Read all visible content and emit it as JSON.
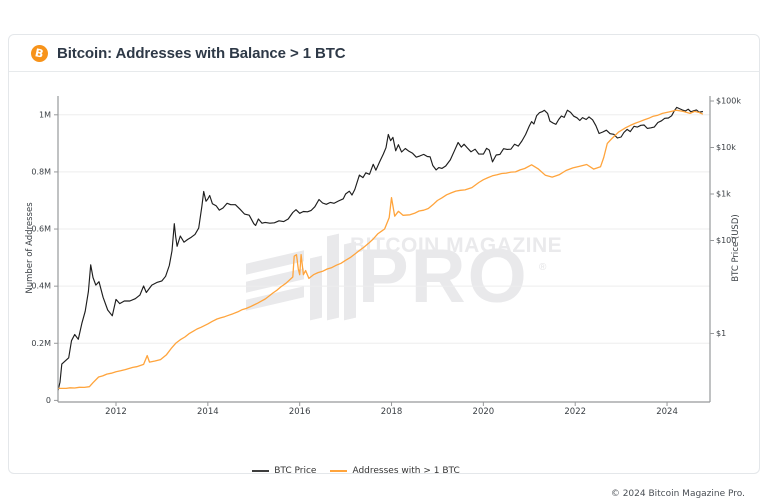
{
  "header": {
    "title": "Bitcoin: Addresses with Balance > 1 BTC",
    "logo_glyph": "B",
    "logo_color": "#f7931a"
  },
  "watermark": {
    "line1": "BITCOIN MAGAZINE",
    "line2": "PRO",
    "registered": "®"
  },
  "footer": {
    "copyright": "© 2024 Bitcoin Magazine Pro."
  },
  "legend": [
    {
      "label": "BTC Price",
      "color": "#3d3d3d"
    },
    {
      "label": "Addresses with > 1 BTC",
      "color": "#ffa43c"
    }
  ],
  "chart_data": {
    "type": "line",
    "title": "Bitcoin: Addresses with Balance > 1 BTC",
    "grid": "horizontal",
    "legend_position": "bottom",
    "x_axis": {
      "range": [
        2010.74,
        2024.93
      ],
      "ticks": [
        2012,
        2014,
        2016,
        2018,
        2020,
        2022,
        2024
      ],
      "tick_labels": [
        "2012",
        "2014",
        "2016",
        "2018",
        "2020",
        "2022",
        "2024"
      ]
    },
    "y_left": {
      "label": "Number of Addresses",
      "unit": "million addresses",
      "scale": "linear",
      "range": [
        0,
        1.07
      ],
      "ticks": [
        0,
        0.2,
        0.4,
        0.6,
        0.8,
        1.0
      ],
      "tick_labels": [
        "0",
        "0.2M",
        "0.4M",
        "0.6M",
        "0.8M",
        "1M"
      ]
    },
    "y_right": {
      "label": "BTC Price (USD)",
      "unit": "USD",
      "scale": "log",
      "ticks": [
        1,
        100,
        1000,
        10000,
        100000
      ],
      "tick_labels": [
        "$1",
        "$100",
        "$1k",
        "$10k",
        "$100k"
      ]
    },
    "series": [
      {
        "name": "BTC Price",
        "axis": "right",
        "color": "#1e1e1e",
        "points": [
          [
            2010.74,
            0.06
          ],
          [
            2010.78,
            0.09
          ],
          [
            2010.82,
            0.22
          ],
          [
            2010.9,
            0.26
          ],
          [
            2010.97,
            0.3
          ],
          [
            2011.03,
            0.7
          ],
          [
            2011.1,
            0.95
          ],
          [
            2011.18,
            0.75
          ],
          [
            2011.26,
            1.7
          ],
          [
            2011.33,
            3.0
          ],
          [
            2011.4,
            8.0
          ],
          [
            2011.45,
            30
          ],
          [
            2011.5,
            16
          ],
          [
            2011.56,
            11
          ],
          [
            2011.63,
            13
          ],
          [
            2011.72,
            6
          ],
          [
            2011.82,
            3.2
          ],
          [
            2011.92,
            2.4
          ],
          [
            2012.0,
            5.4
          ],
          [
            2012.08,
            4.4
          ],
          [
            2012.18,
            5.0
          ],
          [
            2012.3,
            5.0
          ],
          [
            2012.42,
            5.6
          ],
          [
            2012.52,
            6.7
          ],
          [
            2012.6,
            10.5
          ],
          [
            2012.66,
            7.6
          ],
          [
            2012.78,
            11
          ],
          [
            2012.9,
            12.6
          ],
          [
            2013.0,
            13.5
          ],
          [
            2013.08,
            17
          ],
          [
            2013.16,
            29
          ],
          [
            2013.22,
            60
          ],
          [
            2013.27,
            230
          ],
          [
            2013.3,
            120
          ],
          [
            2013.33,
            75
          ],
          [
            2013.4,
            125
          ],
          [
            2013.48,
            92
          ],
          [
            2013.56,
            105
          ],
          [
            2013.64,
            118
          ],
          [
            2013.72,
            135
          ],
          [
            2013.8,
            185
          ],
          [
            2013.87,
            550
          ],
          [
            2013.91,
            1130
          ],
          [
            2013.96,
            700
          ],
          [
            2014.0,
            780
          ],
          [
            2014.04,
            930
          ],
          [
            2014.1,
            620
          ],
          [
            2014.18,
            560
          ],
          [
            2014.25,
            450
          ],
          [
            2014.33,
            500
          ],
          [
            2014.42,
            630
          ],
          [
            2014.5,
            590
          ],
          [
            2014.6,
            590
          ],
          [
            2014.7,
            470
          ],
          [
            2014.8,
            370
          ],
          [
            2014.9,
            350
          ],
          [
            2015.0,
            230
          ],
          [
            2015.04,
            210
          ],
          [
            2015.1,
            290
          ],
          [
            2015.18,
            235
          ],
          [
            2015.25,
            245
          ],
          [
            2015.35,
            235
          ],
          [
            2015.45,
            240
          ],
          [
            2015.55,
            265
          ],
          [
            2015.65,
            255
          ],
          [
            2015.75,
            290
          ],
          [
            2015.85,
            400
          ],
          [
            2015.92,
            460
          ],
          [
            2016.0,
            385
          ],
          [
            2016.08,
            420
          ],
          [
            2016.17,
            415
          ],
          [
            2016.25,
            445
          ],
          [
            2016.33,
            530
          ],
          [
            2016.42,
            760
          ],
          [
            2016.5,
            640
          ],
          [
            2016.58,
            600
          ],
          [
            2016.67,
            660
          ],
          [
            2016.75,
            630
          ],
          [
            2016.85,
            710
          ],
          [
            2016.95,
            790
          ],
          [
            2017.0,
            1000
          ],
          [
            2017.08,
            1150
          ],
          [
            2017.14,
            950
          ],
          [
            2017.2,
            1250
          ],
          [
            2017.3,
            2550
          ],
          [
            2017.38,
            2250
          ],
          [
            2017.44,
            2850
          ],
          [
            2017.52,
            2650
          ],
          [
            2017.6,
            4350
          ],
          [
            2017.66,
            3250
          ],
          [
            2017.74,
            4900
          ],
          [
            2017.82,
            7200
          ],
          [
            2017.88,
            9900
          ],
          [
            2017.93,
            19000
          ],
          [
            2017.98,
            14000
          ],
          [
            2018.03,
            16500
          ],
          [
            2018.09,
            8500
          ],
          [
            2018.15,
            11500
          ],
          [
            2018.22,
            8000
          ],
          [
            2018.3,
            9500
          ],
          [
            2018.38,
            8300
          ],
          [
            2018.46,
            7500
          ],
          [
            2018.54,
            6200
          ],
          [
            2018.62,
            6600
          ],
          [
            2018.7,
            7100
          ],
          [
            2018.78,
            6400
          ],
          [
            2018.84,
            6300
          ],
          [
            2018.9,
            4100
          ],
          [
            2018.97,
            3300
          ],
          [
            2019.03,
            3700
          ],
          [
            2019.1,
            3550
          ],
          [
            2019.18,
            4000
          ],
          [
            2019.28,
            5400
          ],
          [
            2019.37,
            8500
          ],
          [
            2019.45,
            12800
          ],
          [
            2019.52,
            10200
          ],
          [
            2019.58,
            11800
          ],
          [
            2019.65,
            9800
          ],
          [
            2019.73,
            8100
          ],
          [
            2019.82,
            9200
          ],
          [
            2019.9,
            7200
          ],
          [
            2020.0,
            7200
          ],
          [
            2020.07,
            9600
          ],
          [
            2020.13,
            8800
          ],
          [
            2020.2,
            4900
          ],
          [
            2020.28,
            6900
          ],
          [
            2020.36,
            7100
          ],
          [
            2020.44,
            9400
          ],
          [
            2020.52,
            9100
          ],
          [
            2020.6,
            9200
          ],
          [
            2020.68,
            11800
          ],
          [
            2020.76,
            10700
          ],
          [
            2020.84,
            13800
          ],
          [
            2020.92,
            19000
          ],
          [
            2021.0,
            29000
          ],
          [
            2021.05,
            36000
          ],
          [
            2021.1,
            32000
          ],
          [
            2021.16,
            48000
          ],
          [
            2021.22,
            56000
          ],
          [
            2021.28,
            59000
          ],
          [
            2021.33,
            63000
          ],
          [
            2021.4,
            54000
          ],
          [
            2021.45,
            37000
          ],
          [
            2021.52,
            33500
          ],
          [
            2021.58,
            31500
          ],
          [
            2021.64,
            40000
          ],
          [
            2021.7,
            47500
          ],
          [
            2021.76,
            44500
          ],
          [
            2021.83,
            63500
          ],
          [
            2021.9,
            57000
          ],
          [
            2021.97,
            47000
          ],
          [
            2022.04,
            43500
          ],
          [
            2022.1,
            38000
          ],
          [
            2022.16,
            44000
          ],
          [
            2022.24,
            40000
          ],
          [
            2022.3,
            45500
          ],
          [
            2022.38,
            39500
          ],
          [
            2022.45,
            29500
          ],
          [
            2022.52,
            20000
          ],
          [
            2022.6,
            21500
          ],
          [
            2022.68,
            23500
          ],
          [
            2022.76,
            19800
          ],
          [
            2022.84,
            19200
          ],
          [
            2022.92,
            16000
          ],
          [
            2023.0,
            16800
          ],
          [
            2023.06,
            21000
          ],
          [
            2023.13,
            24500
          ],
          [
            2023.2,
            22000
          ],
          [
            2023.28,
            28500
          ],
          [
            2023.35,
            27500
          ],
          [
            2023.43,
            30000
          ],
          [
            2023.5,
            30500
          ],
          [
            2023.57,
            25800
          ],
          [
            2023.65,
            26500
          ],
          [
            2023.72,
            27500
          ],
          [
            2023.8,
            34500
          ],
          [
            2023.88,
            37500
          ],
          [
            2023.95,
            42500
          ],
          [
            2024.03,
            43000
          ],
          [
            2024.1,
            48000
          ],
          [
            2024.16,
            62000
          ],
          [
            2024.21,
            73000
          ],
          [
            2024.27,
            68500
          ],
          [
            2024.33,
            64500
          ],
          [
            2024.4,
            61000
          ],
          [
            2024.46,
            66500
          ],
          [
            2024.52,
            58500
          ],
          [
            2024.58,
            61500
          ],
          [
            2024.64,
            64500
          ],
          [
            2024.7,
            57500
          ],
          [
            2024.78,
            59500
          ]
        ]
      },
      {
        "name": "Addresses with > 1 BTC",
        "axis": "left",
        "color": "#ffa43c",
        "points": [
          [
            2010.74,
            0.042
          ],
          [
            2011.0,
            0.044
          ],
          [
            2011.2,
            0.046
          ],
          [
            2011.42,
            0.048
          ],
          [
            2011.5,
            0.062
          ],
          [
            2011.62,
            0.082
          ],
          [
            2011.8,
            0.092
          ],
          [
            2012.0,
            0.1
          ],
          [
            2012.2,
            0.108
          ],
          [
            2012.45,
            0.118
          ],
          [
            2012.6,
            0.126
          ],
          [
            2012.68,
            0.157
          ],
          [
            2012.73,
            0.134
          ],
          [
            2012.85,
            0.138
          ],
          [
            2012.97,
            0.143
          ],
          [
            2013.1,
            0.16
          ],
          [
            2013.3,
            0.2
          ],
          [
            2013.5,
            0.222
          ],
          [
            2013.68,
            0.242
          ],
          [
            2013.85,
            0.256
          ],
          [
            2014.0,
            0.268
          ],
          [
            2014.2,
            0.285
          ],
          [
            2014.45,
            0.298
          ],
          [
            2014.75,
            0.318
          ],
          [
            2015.0,
            0.334
          ],
          [
            2015.25,
            0.355
          ],
          [
            2015.5,
            0.385
          ],
          [
            2015.7,
            0.41
          ],
          [
            2015.85,
            0.432
          ],
          [
            2015.88,
            0.505
          ],
          [
            2015.93,
            0.51
          ],
          [
            2015.97,
            0.46
          ],
          [
            2016.0,
            0.44
          ],
          [
            2016.03,
            0.51
          ],
          [
            2016.08,
            0.44
          ],
          [
            2016.13,
            0.455
          ],
          [
            2016.2,
            0.427
          ],
          [
            2016.3,
            0.44
          ],
          [
            2016.5,
            0.452
          ],
          [
            2016.7,
            0.465
          ],
          [
            2016.9,
            0.48
          ],
          [
            2017.1,
            0.5
          ],
          [
            2017.3,
            0.525
          ],
          [
            2017.5,
            0.55
          ],
          [
            2017.7,
            0.583
          ],
          [
            2017.85,
            0.6
          ],
          [
            2017.95,
            0.64
          ],
          [
            2018.0,
            0.71
          ],
          [
            2018.07,
            0.645
          ],
          [
            2018.15,
            0.662
          ],
          [
            2018.25,
            0.648
          ],
          [
            2018.4,
            0.65
          ],
          [
            2018.6,
            0.663
          ],
          [
            2018.8,
            0.672
          ],
          [
            2019.0,
            0.7
          ],
          [
            2019.2,
            0.72
          ],
          [
            2019.4,
            0.733
          ],
          [
            2019.6,
            0.737
          ],
          [
            2019.75,
            0.745
          ],
          [
            2019.9,
            0.763
          ],
          [
            2020.1,
            0.78
          ],
          [
            2020.3,
            0.79
          ],
          [
            2020.5,
            0.796
          ],
          [
            2020.7,
            0.8
          ],
          [
            2020.9,
            0.812
          ],
          [
            2021.05,
            0.825
          ],
          [
            2021.2,
            0.81
          ],
          [
            2021.35,
            0.788
          ],
          [
            2021.5,
            0.782
          ],
          [
            2021.65,
            0.79
          ],
          [
            2021.8,
            0.805
          ],
          [
            2021.95,
            0.814
          ],
          [
            2022.1,
            0.82
          ],
          [
            2022.25,
            0.826
          ],
          [
            2022.4,
            0.81
          ],
          [
            2022.55,
            0.818
          ],
          [
            2022.62,
            0.85
          ],
          [
            2022.7,
            0.9
          ],
          [
            2022.8,
            0.917
          ],
          [
            2022.95,
            0.94
          ],
          [
            2023.1,
            0.955
          ],
          [
            2023.3,
            0.97
          ],
          [
            2023.5,
            0.982
          ],
          [
            2023.7,
            0.995
          ],
          [
            2023.9,
            1.005
          ],
          [
            2024.05,
            1.01
          ],
          [
            2024.2,
            1.016
          ],
          [
            2024.35,
            1.012
          ],
          [
            2024.5,
            1.005
          ],
          [
            2024.6,
            1.012
          ],
          [
            2024.7,
            1.008
          ],
          [
            2024.78,
            1.002
          ]
        ]
      }
    ]
  }
}
